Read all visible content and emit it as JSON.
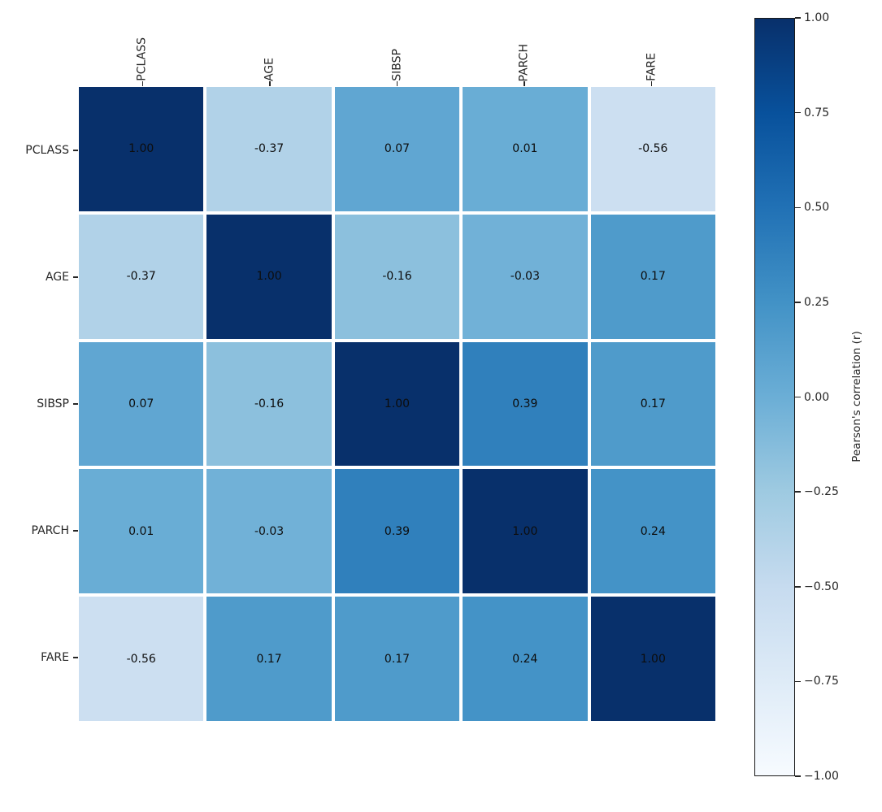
{
  "chart_data": {
    "type": "heatmap",
    "title": "",
    "categories": [
      "PCLASS",
      "AGE",
      "SIBSP",
      "PARCH",
      "FARE"
    ],
    "matrix": [
      [
        1.0,
        -0.37,
        0.07,
        0.01,
        -0.56
      ],
      [
        -0.37,
        1.0,
        -0.16,
        -0.03,
        0.17
      ],
      [
        0.07,
        -0.16,
        1.0,
        0.39,
        0.17
      ],
      [
        0.01,
        -0.03,
        0.39,
        1.0,
        0.24
      ],
      [
        -0.56,
        0.17,
        0.17,
        0.24,
        1.0
      ]
    ],
    "vmin": -1.0,
    "vmax": 1.0,
    "grid": "off",
    "legend_position": "colorbar-right",
    "annotation_format": "0.00",
    "annotation_color": "#0d0d0d",
    "tick_label_color": "#262626",
    "colormap": {
      "name": "Blues",
      "stops": [
        "#f7fbff",
        "#deebf7",
        "#c6dbef",
        "#9ecae1",
        "#6baed6",
        "#4292c6",
        "#2171b5",
        "#08519c",
        "#08306b"
      ]
    },
    "colorbar": {
      "label": "Pearson's correlation (r)",
      "tick_labels": [
        "1.00",
        "0.75",
        "0.50",
        "0.25",
        "0.00",
        "−0.25",
        "−0.50",
        "−0.75",
        "−1.00"
      ],
      "tick_values": [
        1.0,
        0.75,
        0.5,
        0.25,
        0.0,
        -0.25,
        -0.5,
        -0.75,
        -1.0
      ]
    }
  }
}
